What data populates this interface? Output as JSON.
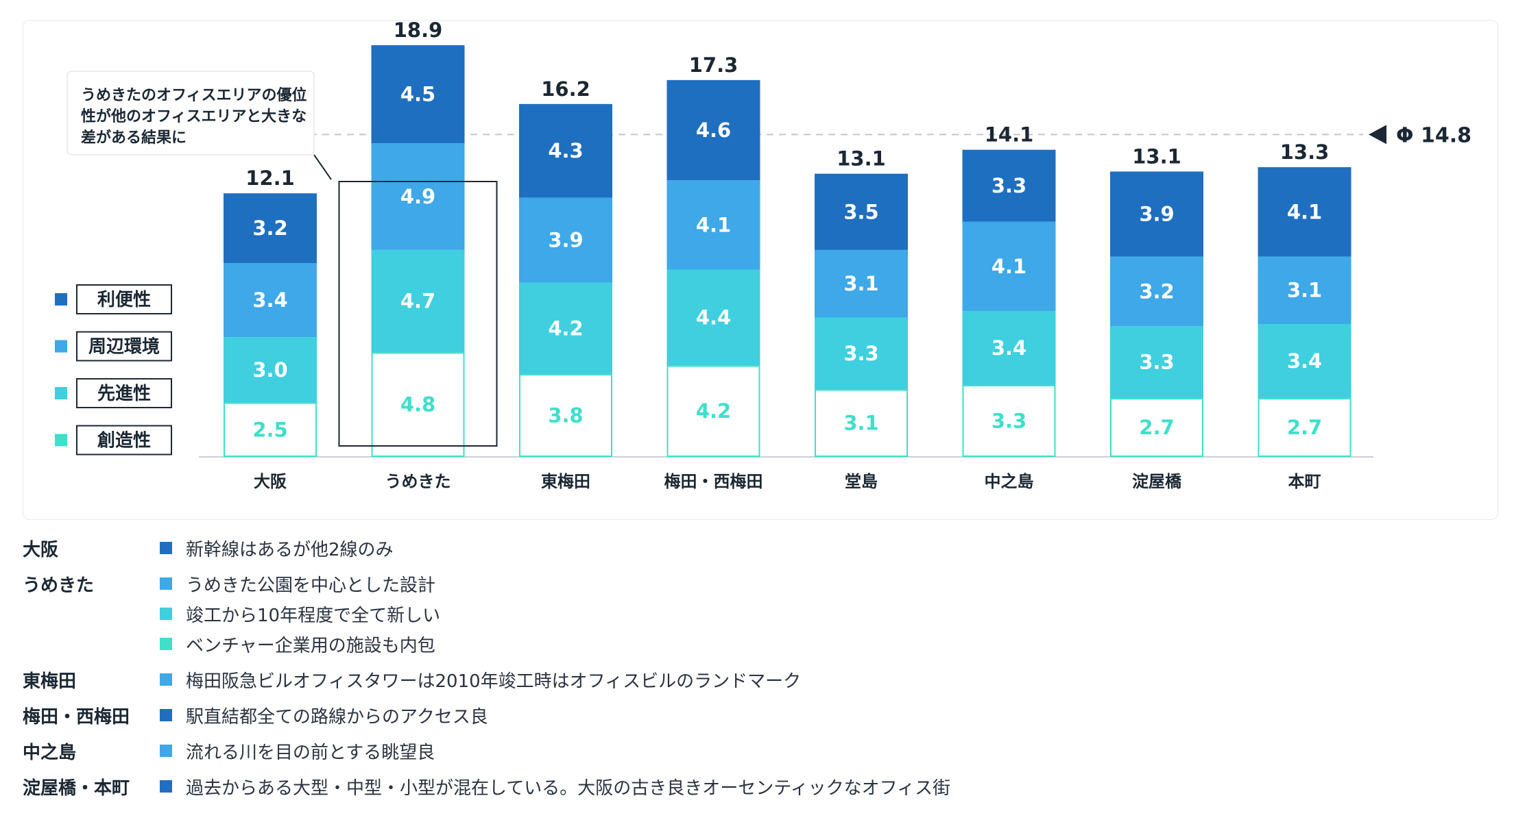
{
  "colors": {
    "利便性": "#1f6fc0",
    "周辺環境": "#3ea8e8",
    "先進性": "#3fcfdf",
    "創造性": "#3fdfca",
    "avg_line": "#bfc6cf",
    "text": "#1b2733"
  },
  "legend": [
    {
      "label": "利便性",
      "key": "利便性"
    },
    {
      "label": "周辺環境",
      "key": "周辺環境"
    },
    {
      "label": "先進性",
      "key": "先進性"
    },
    {
      "label": "創造性",
      "key": "創造性"
    }
  ],
  "callout": {
    "lines": [
      "うめきたのオフィスエリアの優位",
      "性が他のオフィスエリアと大きな",
      "差がある結果に"
    ]
  },
  "chart_data": {
    "type": "bar",
    "stacked": true,
    "categories": [
      "大阪",
      "うめきた",
      "東梅田",
      "梅田・西梅田",
      "堂島",
      "中之島",
      "淀屋橋",
      "本町"
    ],
    "series": [
      {
        "name": "創造性",
        "values": [
          2.5,
          4.8,
          3.8,
          4.2,
          3.1,
          3.3,
          2.7,
          2.7
        ]
      },
      {
        "name": "先進性",
        "values": [
          3.0,
          4.7,
          4.2,
          4.4,
          3.3,
          3.4,
          3.3,
          3.4
        ]
      },
      {
        "name": "周辺環境",
        "values": [
          3.4,
          4.9,
          3.9,
          4.1,
          3.1,
          4.1,
          3.2,
          3.1
        ]
      },
      {
        "name": "利便性",
        "values": [
          3.2,
          4.5,
          4.3,
          4.6,
          3.5,
          3.3,
          3.9,
          4.1
        ]
      }
    ],
    "totals": [
      "12.1",
      "18.9",
      "16.2",
      "17.3",
      "13.1",
      "14.1",
      "13.1",
      "13.3"
    ],
    "average": {
      "value": 14.8,
      "label": "Φ 14.8"
    },
    "highlight_category": "うめきた",
    "legend_position": "left",
    "grid": false
  },
  "notes": [
    {
      "area": "大阪",
      "items": [
        {
          "color_key": "利便性",
          "text": "新幹線はあるが他2線のみ"
        }
      ]
    },
    {
      "area": "うめきた",
      "items": [
        {
          "color_key": "周辺環境",
          "text": "うめきた公園を中心とした設計"
        },
        {
          "color_key": "先進性",
          "text": "竣工から10年程度で全て新しい"
        },
        {
          "color_key": "創造性",
          "text": "ベンチャー企業用の施設も内包"
        }
      ]
    },
    {
      "area": "東梅田",
      "items": [
        {
          "color_key": "周辺環境",
          "text": "梅田阪急ビルオフィスタワーは2010年竣工時はオフィスビルのランドマーク"
        }
      ]
    },
    {
      "area": "梅田・西梅田",
      "items": [
        {
          "color_key": "利便性",
          "text": "駅直結都全ての路線からのアクセス良"
        }
      ]
    },
    {
      "area": "中之島",
      "items": [
        {
          "color_key": "周辺環境",
          "text": "流れる川を目の前とする眺望良"
        }
      ]
    },
    {
      "area": "淀屋橋・本町",
      "items": [
        {
          "color_key": "利便性",
          "text": "過去からある大型・中型・小型が混在している。大阪の古き良きオーセンティックなオフィス街"
        }
      ]
    }
  ]
}
